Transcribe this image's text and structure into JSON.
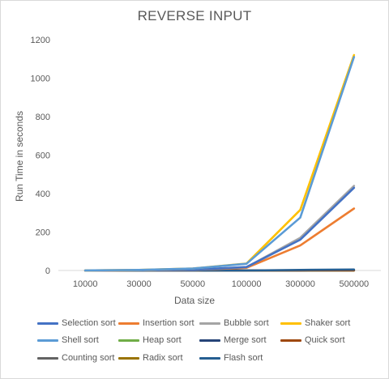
{
  "chart_data": {
    "type": "line",
    "title": "REVERSE INPUT",
    "xlabel": "Data size",
    "ylabel": "Run Time in seconds",
    "categories": [
      "10000",
      "30000",
      "50000",
      "100000",
      "300000",
      "500000"
    ],
    "ylim": [
      0,
      1200
    ],
    "yticks": [
      "0",
      "200",
      "400",
      "600",
      "800",
      "1000",
      "1200"
    ],
    "grid": false,
    "legend": "bottom",
    "series": [
      {
        "name": "Selection sort",
        "color": "#4472c4",
        "values": [
          0.2,
          1.5,
          4,
          18,
          160,
          430
        ]
      },
      {
        "name": "Insertion sort",
        "color": "#ed7d31",
        "values": [
          0.2,
          1.2,
          3,
          14,
          130,
          322
        ]
      },
      {
        "name": "Bubble sort",
        "color": "#a5a5a5",
        "values": [
          0.2,
          1.5,
          4,
          17,
          170,
          440
        ]
      },
      {
        "name": "Shaker sort",
        "color": "#ffc000",
        "values": [
          0.5,
          3,
          10,
          36,
          315,
          1120
        ]
      },
      {
        "name": "Shell sort",
        "color": "#5b9bd5",
        "values": [
          0.5,
          3,
          10,
          35,
          275,
          1110
        ]
      },
      {
        "name": "Heap sort",
        "color": "#70ad47",
        "values": [
          0,
          0,
          0,
          0,
          0.5,
          1
        ]
      },
      {
        "name": "Merge sort",
        "color": "#264478",
        "values": [
          0,
          0,
          0,
          0,
          0.5,
          1
        ]
      },
      {
        "name": "Quick sort",
        "color": "#9e480e",
        "values": [
          0,
          0,
          0,
          0,
          0.5,
          1
        ]
      },
      {
        "name": "Counting sort",
        "color": "#636363",
        "values": [
          0,
          0,
          0,
          0,
          0.3,
          0.5
        ]
      },
      {
        "name": "Radix sort",
        "color": "#997300",
        "values": [
          0,
          0,
          0,
          0,
          0.3,
          0.5
        ]
      },
      {
        "name": "Flash sort",
        "color": "#255e91",
        "values": [
          0,
          0,
          0,
          0,
          3,
          5
        ]
      }
    ]
  }
}
